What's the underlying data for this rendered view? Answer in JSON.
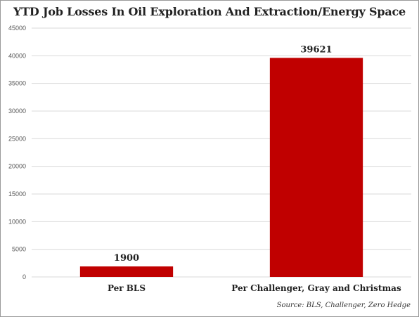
{
  "chart_data": {
    "type": "bar",
    "title": "YTD Job Losses In Oil Exploration And Extraction/Energy Space",
    "categories": [
      "Per BLS",
      "Per Challenger, Gray and Christmas"
    ],
    "values": [
      1900,
      39621
    ],
    "data_labels": [
      "1900",
      "39621"
    ],
    "ylim": [
      0,
      45000
    ],
    "yticks": [
      0,
      5000,
      10000,
      15000,
      20000,
      25000,
      30000,
      35000,
      40000,
      45000
    ],
    "grid": true,
    "legend": "none",
    "bar_color": "#c00000",
    "grid_color": "#d9d9d9"
  },
  "source": "Source: BLS, Challenger, Zero Hedge"
}
